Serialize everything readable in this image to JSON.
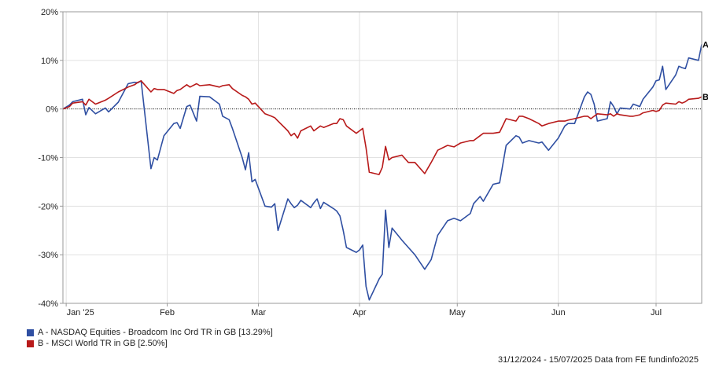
{
  "chart_data": {
    "type": "line",
    "ylim": [
      -40,
      20
    ],
    "yticks": [
      "20%",
      "10%",
      "0%",
      "-10%",
      "-20%",
      "-30%",
      "-40%"
    ],
    "ytick_values": [
      20,
      10,
      0,
      -10,
      -20,
      -30,
      -40
    ],
    "xlim": [
      "2024-12-31",
      "2025-07-15"
    ],
    "xtick_labels": [
      "Jan '25",
      "Feb",
      "Mar",
      "Apr",
      "May",
      "Jun",
      "Jul"
    ],
    "xtick_dates": [
      "2025-01-01",
      "2025-02-01",
      "2025-03-01",
      "2025-04-01",
      "2025-05-01",
      "2025-06-01",
      "2025-07-01"
    ],
    "zero_line": true,
    "grid": true,
    "series": [
      {
        "name": "A - NASDAQ Equities - Broadcom Inc Ord TR in GB [13.29%]",
        "end_label": "A",
        "color": "#2f4fa2",
        "points": [
          [
            "2024-12-31",
            0
          ],
          [
            "2025-01-02",
            0.8
          ],
          [
            "2025-01-03",
            1.5
          ],
          [
            "2025-01-06",
            2.0
          ],
          [
            "2025-01-07",
            -1.2
          ],
          [
            "2025-01-08",
            0.3
          ],
          [
            "2025-01-10",
            -1.0
          ],
          [
            "2025-01-13",
            0.2
          ],
          [
            "2025-01-14",
            -0.6
          ],
          [
            "2025-01-17",
            1.4
          ],
          [
            "2025-01-20",
            5.2
          ],
          [
            "2025-01-22",
            5.5
          ],
          [
            "2025-01-23",
            5.4
          ],
          [
            "2025-01-24",
            5.8
          ],
          [
            "2025-01-27",
            -12.3
          ],
          [
            "2025-01-28",
            -10.0
          ],
          [
            "2025-01-29",
            -10.5
          ],
          [
            "2025-01-31",
            -5.5
          ],
          [
            "2025-02-03",
            -3.0
          ],
          [
            "2025-02-04",
            -2.8
          ],
          [
            "2025-02-05",
            -4.0
          ],
          [
            "2025-02-07",
            0.5
          ],
          [
            "2025-02-08",
            0.8
          ],
          [
            "2025-02-10",
            -2.5
          ],
          [
            "2025-02-11",
            2.6
          ],
          [
            "2025-02-14",
            2.5
          ],
          [
            "2025-02-17",
            1.0
          ],
          [
            "2025-02-18",
            -1.5
          ],
          [
            "2025-02-20",
            -2.2
          ],
          [
            "2025-02-21",
            -4.0
          ],
          [
            "2025-02-24",
            -10.0
          ],
          [
            "2025-02-25",
            -12.5
          ],
          [
            "2025-02-26",
            -9.0
          ],
          [
            "2025-02-27",
            -15.0
          ],
          [
            "2025-02-28",
            -14.5
          ],
          [
            "2025-03-03",
            -20.0
          ],
          [
            "2025-03-05",
            -20.2
          ],
          [
            "2025-03-06",
            -19.5
          ],
          [
            "2025-03-07",
            -25.0
          ],
          [
            "2025-03-10",
            -18.5
          ],
          [
            "2025-03-11",
            -19.5
          ],
          [
            "2025-03-12",
            -20.3
          ],
          [
            "2025-03-13",
            -19.8
          ],
          [
            "2025-03-14",
            -18.8
          ],
          [
            "2025-03-17",
            -20.3
          ],
          [
            "2025-03-18",
            -19.3
          ],
          [
            "2025-03-19",
            -18.5
          ],
          [
            "2025-03-20",
            -20.5
          ],
          [
            "2025-03-21",
            -19.2
          ],
          [
            "2025-03-24",
            -20.5
          ],
          [
            "2025-03-25",
            -21.0
          ],
          [
            "2025-03-26",
            -22.0
          ],
          [
            "2025-03-27",
            -25.0
          ],
          [
            "2025-03-28",
            -28.5
          ],
          [
            "2025-03-31",
            -29.5
          ],
          [
            "2025-04-01",
            -29.0
          ],
          [
            "2025-04-02",
            -28.0
          ],
          [
            "2025-04-03",
            -36.5
          ],
          [
            "2025-04-04",
            -39.3
          ],
          [
            "2025-04-07",
            -35.0
          ],
          [
            "2025-04-08",
            -34.0
          ],
          [
            "2025-04-09",
            -20.8
          ],
          [
            "2025-04-10",
            -28.5
          ],
          [
            "2025-04-11",
            -24.5
          ],
          [
            "2025-04-14",
            -27.0
          ],
          [
            "2025-04-16",
            -28.5
          ],
          [
            "2025-04-18",
            -30.0
          ],
          [
            "2025-04-21",
            -33.0
          ],
          [
            "2025-04-23",
            -31.0
          ],
          [
            "2025-04-25",
            -26.0
          ],
          [
            "2025-04-28",
            -23.0
          ],
          [
            "2025-04-30",
            -22.5
          ],
          [
            "2025-05-02",
            -23.0
          ],
          [
            "2025-05-05",
            -21.5
          ],
          [
            "2025-05-06",
            -19.5
          ],
          [
            "2025-05-08",
            -18.0
          ],
          [
            "2025-05-09",
            -19.0
          ],
          [
            "2025-05-12",
            -15.5
          ],
          [
            "2025-05-14",
            -15.2
          ],
          [
            "2025-05-16",
            -7.5
          ],
          [
            "2025-05-19",
            -5.5
          ],
          [
            "2025-05-20",
            -5.8
          ],
          [
            "2025-05-21",
            -7.0
          ],
          [
            "2025-05-23",
            -6.5
          ],
          [
            "2025-05-26",
            -7.0
          ],
          [
            "2025-05-27",
            -6.8
          ],
          [
            "2025-05-29",
            -8.5
          ],
          [
            "2025-06-01",
            -6.0
          ],
          [
            "2025-06-03",
            -3.5
          ],
          [
            "2025-06-04",
            -3.0
          ],
          [
            "2025-06-06",
            -3.0
          ],
          [
            "2025-06-09",
            2.5
          ],
          [
            "2025-06-10",
            3.5
          ],
          [
            "2025-06-11",
            3.0
          ],
          [
            "2025-06-12",
            1.0
          ],
          [
            "2025-06-13",
            -2.5
          ],
          [
            "2025-06-16",
            -2.0
          ],
          [
            "2025-06-17",
            1.5
          ],
          [
            "2025-06-18",
            0.5
          ],
          [
            "2025-06-19",
            -1.0
          ],
          [
            "2025-06-20",
            0.2
          ],
          [
            "2025-06-23",
            0.0
          ],
          [
            "2025-06-24",
            1.0
          ],
          [
            "2025-06-26",
            0.5
          ],
          [
            "2025-06-27",
            2.0
          ],
          [
            "2025-06-30",
            4.5
          ],
          [
            "2025-07-01",
            5.8
          ],
          [
            "2025-07-02",
            6.0
          ],
          [
            "2025-07-03",
            8.8
          ],
          [
            "2025-07-04",
            4.0
          ],
          [
            "2025-07-07",
            7.0
          ],
          [
            "2025-07-08",
            8.8
          ],
          [
            "2025-07-09",
            8.5
          ],
          [
            "2025-07-10",
            8.3
          ],
          [
            "2025-07-11",
            10.5
          ],
          [
            "2025-07-14",
            10.0
          ],
          [
            "2025-07-15",
            13.29
          ]
        ]
      },
      {
        "name": "B - MSCI World TR in GB [2.50%]",
        "end_label": "B",
        "color": "#b81a1a",
        "points": [
          [
            "2024-12-31",
            0
          ],
          [
            "2025-01-02",
            0.5
          ],
          [
            "2025-01-03",
            1.2
          ],
          [
            "2025-01-06",
            1.5
          ],
          [
            "2025-01-07",
            0.8
          ],
          [
            "2025-01-08",
            2.0
          ],
          [
            "2025-01-10",
            1.0
          ],
          [
            "2025-01-13",
            1.8
          ],
          [
            "2025-01-14",
            2.2
          ],
          [
            "2025-01-17",
            3.5
          ],
          [
            "2025-01-20",
            4.5
          ],
          [
            "2025-01-22",
            5.0
          ],
          [
            "2025-01-23",
            5.5
          ],
          [
            "2025-01-24",
            5.8
          ],
          [
            "2025-01-27",
            3.5
          ],
          [
            "2025-01-28",
            4.2
          ],
          [
            "2025-01-29",
            4.0
          ],
          [
            "2025-01-31",
            4.0
          ],
          [
            "2025-02-03",
            3.2
          ],
          [
            "2025-02-04",
            3.8
          ],
          [
            "2025-02-05",
            4.0
          ],
          [
            "2025-02-07",
            5.0
          ],
          [
            "2025-02-08",
            4.5
          ],
          [
            "2025-02-10",
            5.2
          ],
          [
            "2025-02-11",
            4.8
          ],
          [
            "2025-02-14",
            5.0
          ],
          [
            "2025-02-17",
            4.5
          ],
          [
            "2025-02-18",
            4.8
          ],
          [
            "2025-02-20",
            5.0
          ],
          [
            "2025-02-21",
            4.2
          ],
          [
            "2025-02-24",
            2.8
          ],
          [
            "2025-02-25",
            2.5
          ],
          [
            "2025-02-26",
            2.0
          ],
          [
            "2025-02-27",
            1.0
          ],
          [
            "2025-02-28",
            1.2
          ],
          [
            "2025-03-03",
            -1.0
          ],
          [
            "2025-03-05",
            -1.5
          ],
          [
            "2025-03-06",
            -1.8
          ],
          [
            "2025-03-07",
            -2.5
          ],
          [
            "2025-03-10",
            -4.5
          ],
          [
            "2025-03-11",
            -5.5
          ],
          [
            "2025-03-12",
            -5.0
          ],
          [
            "2025-03-13",
            -6.0
          ],
          [
            "2025-03-14",
            -4.5
          ],
          [
            "2025-03-17",
            -3.5
          ],
          [
            "2025-03-18",
            -4.5
          ],
          [
            "2025-03-19",
            -4.0
          ],
          [
            "2025-03-20",
            -3.5
          ],
          [
            "2025-03-21",
            -3.8
          ],
          [
            "2025-03-24",
            -3.0
          ],
          [
            "2025-03-25",
            -3.0
          ],
          [
            "2025-03-26",
            -2.0
          ],
          [
            "2025-03-27",
            -2.2
          ],
          [
            "2025-03-28",
            -3.5
          ],
          [
            "2025-03-31",
            -5.0
          ],
          [
            "2025-04-01",
            -4.5
          ],
          [
            "2025-04-02",
            -4.0
          ],
          [
            "2025-04-03",
            -8.0
          ],
          [
            "2025-04-04",
            -13.0
          ],
          [
            "2025-04-07",
            -13.5
          ],
          [
            "2025-04-08",
            -12.0
          ],
          [
            "2025-04-09",
            -7.7
          ],
          [
            "2025-04-10",
            -10.5
          ],
          [
            "2025-04-11",
            -10.0
          ],
          [
            "2025-04-14",
            -9.5
          ],
          [
            "2025-04-16",
            -11.0
          ],
          [
            "2025-04-18",
            -11.0
          ],
          [
            "2025-04-21",
            -13.3
          ],
          [
            "2025-04-23",
            -11.0
          ],
          [
            "2025-04-25",
            -8.5
          ],
          [
            "2025-04-28",
            -7.5
          ],
          [
            "2025-04-30",
            -7.8
          ],
          [
            "2025-05-02",
            -7.0
          ],
          [
            "2025-05-05",
            -6.5
          ],
          [
            "2025-05-06",
            -6.5
          ],
          [
            "2025-05-08",
            -5.5
          ],
          [
            "2025-05-09",
            -5.0
          ],
          [
            "2025-05-12",
            -5.0
          ],
          [
            "2025-05-14",
            -4.8
          ],
          [
            "2025-05-16",
            -2.0
          ],
          [
            "2025-05-19",
            -2.5
          ],
          [
            "2025-05-20",
            -1.5
          ],
          [
            "2025-05-21",
            -1.5
          ],
          [
            "2025-05-23",
            -2.0
          ],
          [
            "2025-05-26",
            -3.0
          ],
          [
            "2025-05-27",
            -3.5
          ],
          [
            "2025-05-29",
            -3.0
          ],
          [
            "2025-06-01",
            -2.5
          ],
          [
            "2025-06-03",
            -2.5
          ],
          [
            "2025-06-04",
            -2.3
          ],
          [
            "2025-06-06",
            -2.0
          ],
          [
            "2025-06-09",
            -1.5
          ],
          [
            "2025-06-10",
            -1.5
          ],
          [
            "2025-06-11",
            -2.0
          ],
          [
            "2025-06-12",
            -1.5
          ],
          [
            "2025-06-13",
            -1.0
          ],
          [
            "2025-06-16",
            -1.2
          ],
          [
            "2025-06-17",
            -1.0
          ],
          [
            "2025-06-18",
            -1.5
          ],
          [
            "2025-06-19",
            -1.0
          ],
          [
            "2025-06-20",
            -1.2
          ],
          [
            "2025-06-23",
            -1.5
          ],
          [
            "2025-06-24",
            -1.5
          ],
          [
            "2025-06-26",
            -1.2
          ],
          [
            "2025-06-27",
            -0.8
          ],
          [
            "2025-06-30",
            -0.3
          ],
          [
            "2025-07-01",
            -0.5
          ],
          [
            "2025-07-02",
            -0.3
          ],
          [
            "2025-07-03",
            0.8
          ],
          [
            "2025-07-04",
            1.2
          ],
          [
            "2025-07-07",
            1.0
          ],
          [
            "2025-07-08",
            1.5
          ],
          [
            "2025-07-09",
            1.2
          ],
          [
            "2025-07-10",
            1.5
          ],
          [
            "2025-07-11",
            2.0
          ],
          [
            "2025-07-14",
            2.2
          ],
          [
            "2025-07-15",
            2.5
          ]
        ]
      }
    ]
  },
  "legend": {
    "a": "A - NASDAQ Equities - Broadcom Inc Ord TR in GB [13.29%]",
    "b": "B - MSCI World TR in GB [2.50%]"
  },
  "footer": "31/12/2024 - 15/07/2025 Data from FE fundinfo2025"
}
